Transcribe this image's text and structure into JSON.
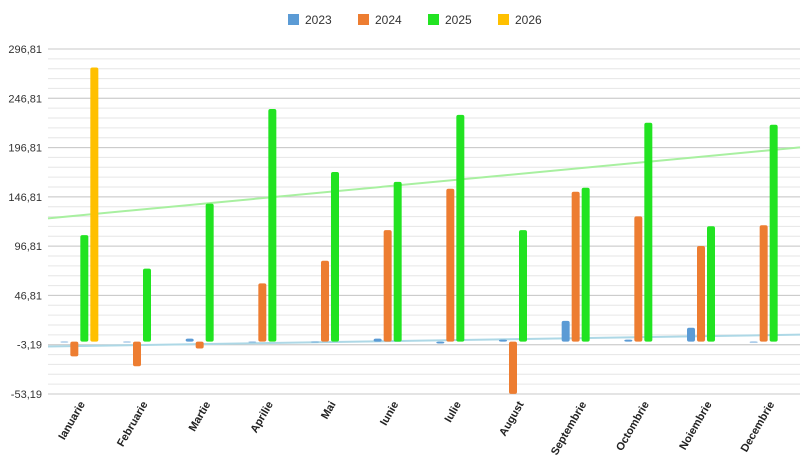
{
  "chart_data": {
    "type": "bar",
    "categories": [
      "Ianuarie",
      "Februarie",
      "Martie",
      "Aprilie",
      "Mai",
      "Iunie",
      "Iulie",
      "August",
      "Septembrie",
      "Octombrie",
      "Noiembrie",
      "Decembrie"
    ],
    "series": [
      {
        "name": "2023",
        "color": "#5b9bd5",
        "values": [
          0,
          0,
          3,
          0,
          0,
          3,
          -2,
          2,
          21,
          2,
          14,
          -1
        ]
      },
      {
        "name": "2024",
        "color": "#ed7d31",
        "values": [
          -15,
          -25,
          -7,
          59,
          82,
          113,
          155,
          -53,
          152,
          127,
          97,
          118
        ]
      },
      {
        "name": "2025",
        "color": "#22e322",
        "values": [
          108,
          74,
          140,
          236,
          172,
          162,
          230,
          113,
          156,
          222,
          117,
          220
        ]
      },
      {
        "name": "2026",
        "color": "#ffc000",
        "values": [
          278,
          null,
          null,
          null,
          null,
          null,
          null,
          null,
          null,
          null,
          null,
          null
        ]
      }
    ],
    "trendlines": [
      {
        "series": "2023",
        "color": "#add8e6",
        "start": -5,
        "end": 7
      },
      {
        "series": "2025",
        "color": "#a8f0a0",
        "start": 125,
        "end": 197
      }
    ],
    "yticks": [
      "296,81",
      "246,81",
      "196,81",
      "146,81",
      "96,81",
      "46,81",
      "-3,19",
      "-53,19"
    ],
    "ylim": [
      -53.19,
      296.81
    ],
    "ytick_step": 50,
    "minor_grid_step": 10,
    "grid": true,
    "legend_position": "top-center",
    "title": "",
    "xlabel": "",
    "ylabel": ""
  }
}
